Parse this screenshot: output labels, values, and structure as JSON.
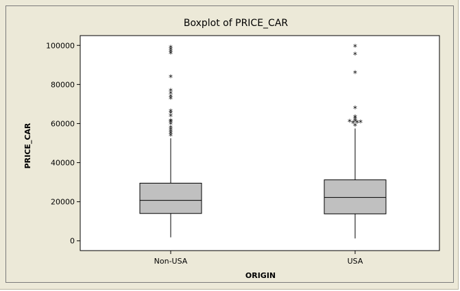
{
  "chart_data": {
    "type": "boxplot",
    "title": "Boxplot of PRICE_CAR",
    "xlabel": "ORIGIN",
    "ylabel": "PRICE_CAR",
    "ylim": [
      -5000,
      105000
    ],
    "yticks": [
      0,
      20000,
      40000,
      60000,
      80000,
      100000
    ],
    "yticklabels": [
      "0",
      "20000",
      "40000",
      "60000",
      "80000",
      "100000"
    ],
    "categories": [
      "Non-USA",
      "USA"
    ],
    "boxes": [
      {
        "category": "Non-USA",
        "whisker_low": 1800,
        "q1": 14000,
        "median": 20700,
        "q3": 29500,
        "whisker_high": 52500,
        "outliers": [
          53500,
          54500,
          55500,
          56500,
          57500,
          59500,
          60500,
          61000,
          63500,
          65000,
          66000,
          72500,
          73500,
          75000,
          76500,
          83500,
          95500,
          96500,
          97500,
          98500
        ]
      },
      {
        "category": "USA",
        "whisker_low": 1200,
        "q1": 13800,
        "median": 22200,
        "q3": 31200,
        "whisker_high": 57500,
        "outliers": [
          58500,
          60000,
          60200,
          60400,
          60600,
          61000,
          62000,
          63000,
          67500,
          85500,
          95000,
          99000
        ]
      }
    ],
    "colors": {
      "box_fill": "#c0c0c0",
      "box_stroke": "#000000",
      "plot_bg": "#ffffff",
      "frame_bg": "#ece9d8"
    }
  }
}
